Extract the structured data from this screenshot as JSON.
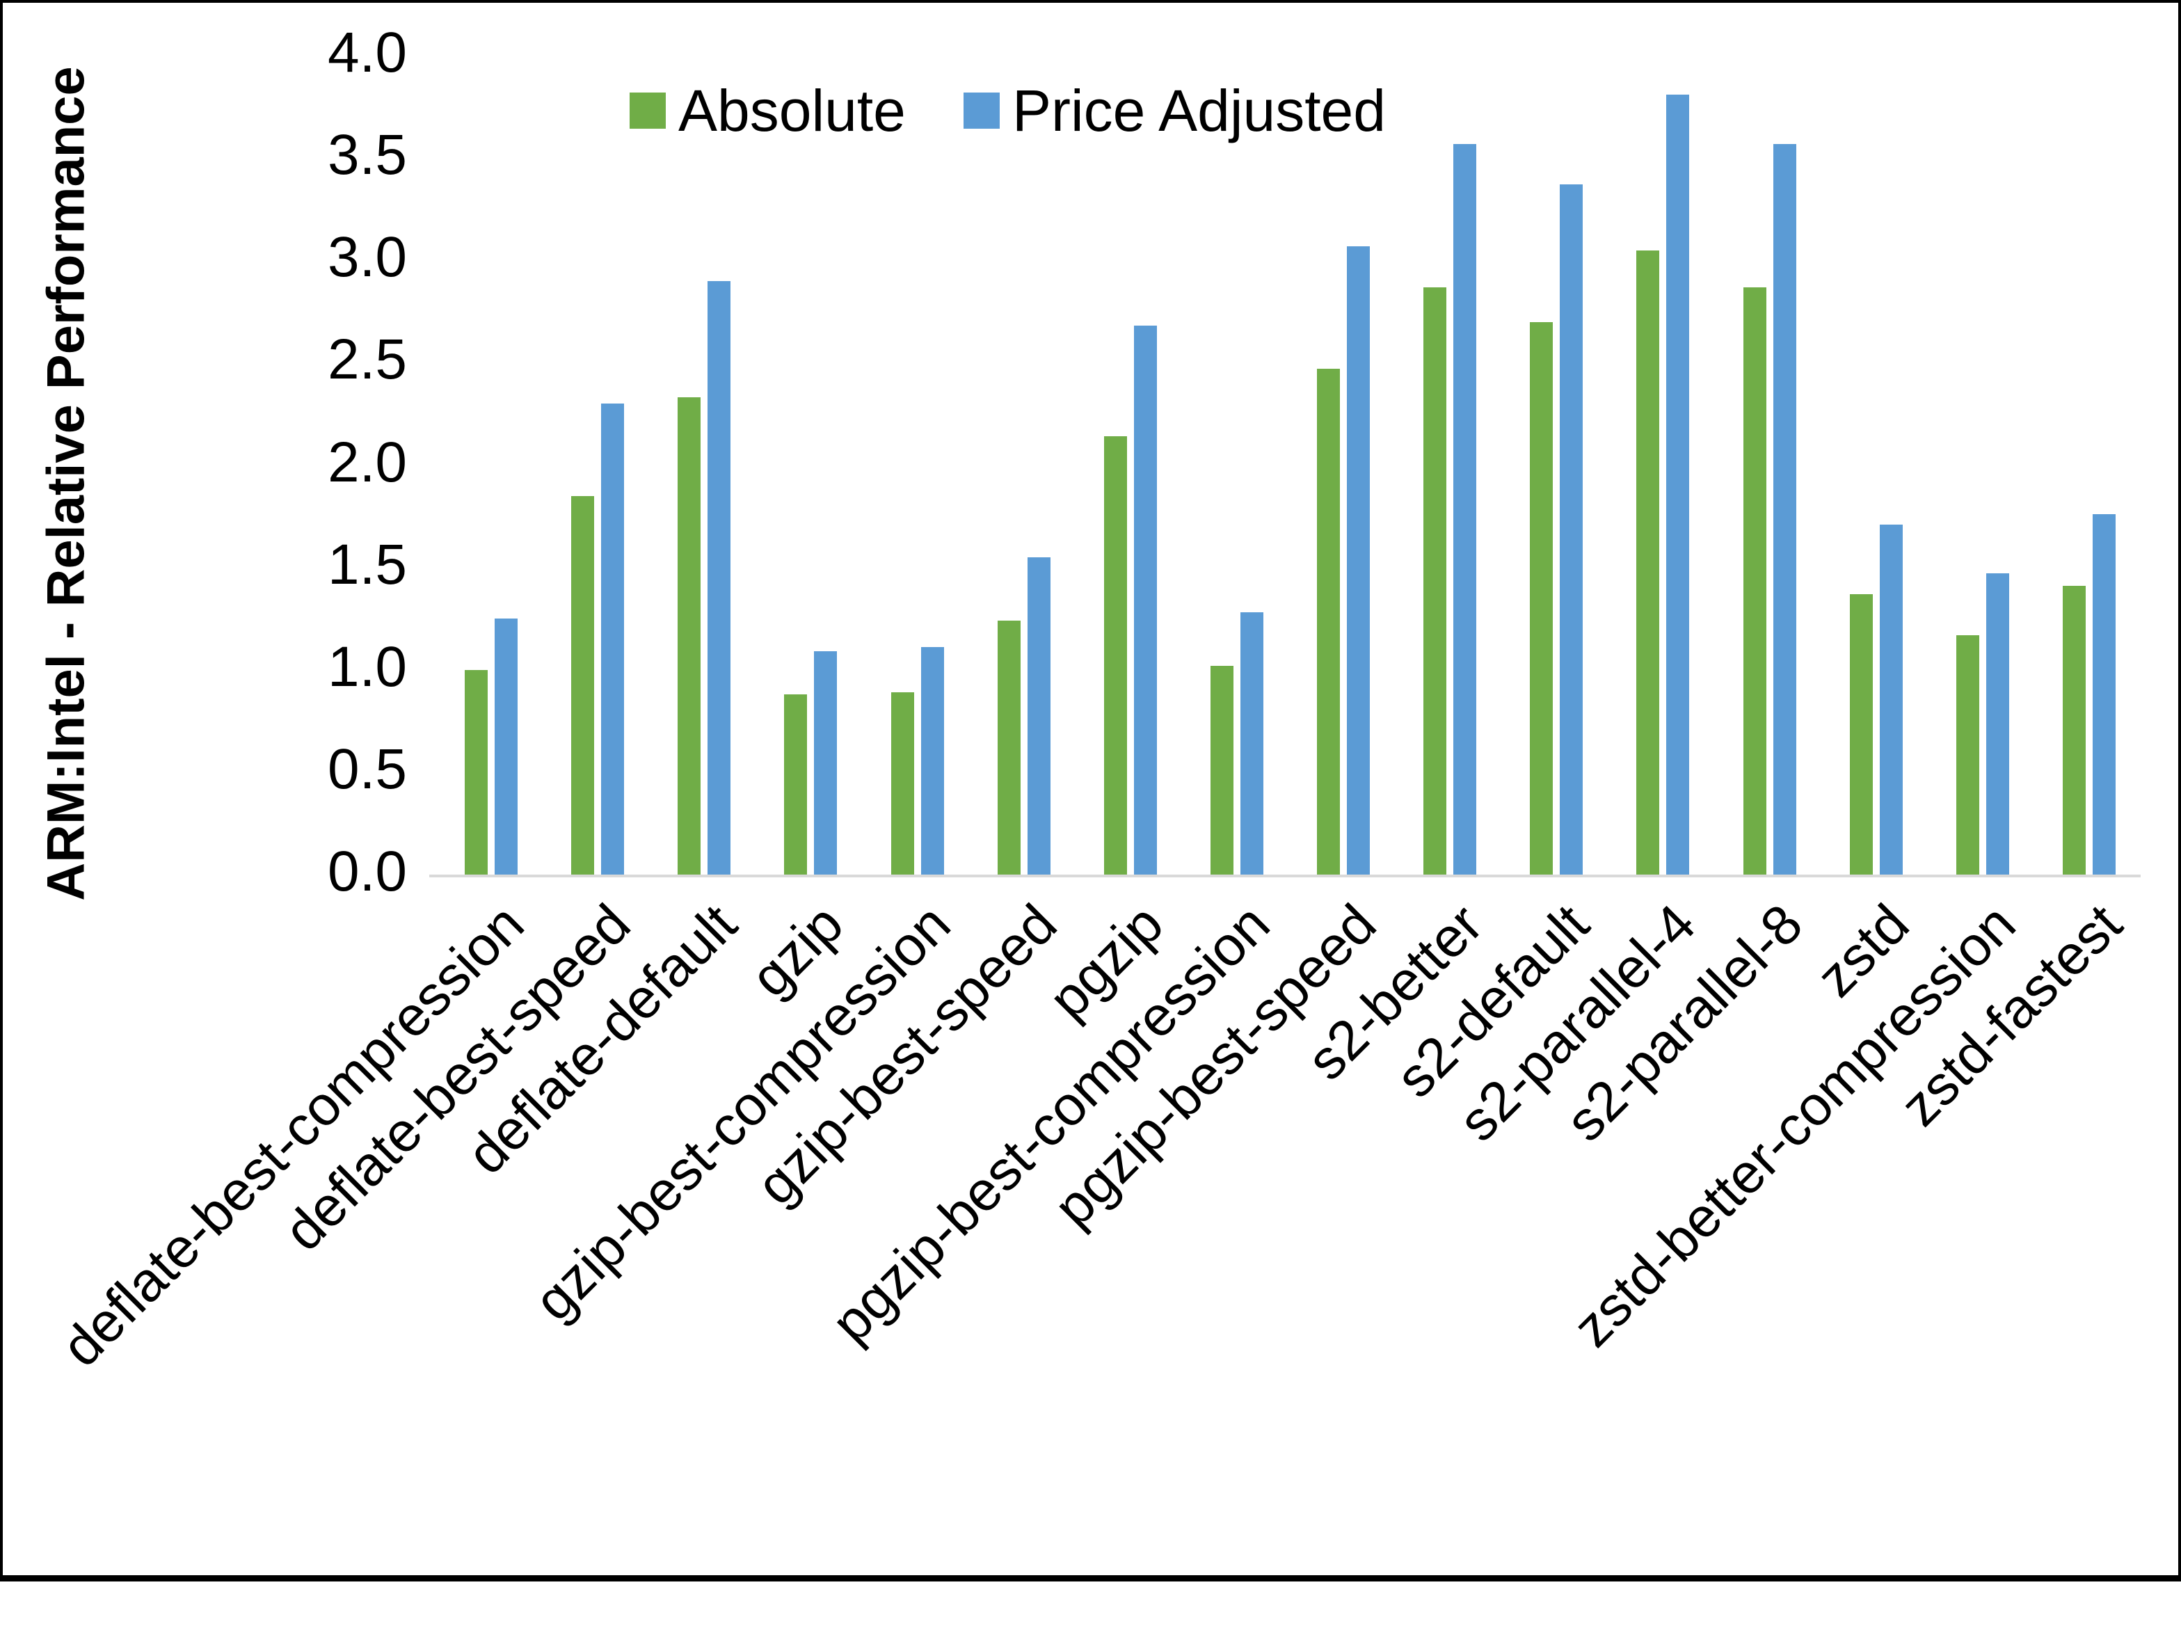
{
  "chart_data": {
    "type": "bar",
    "title": "",
    "xlabel": "",
    "ylabel": "ARM:Intel - Relative Performance",
    "ylim": [
      0.0,
      4.0
    ],
    "ytick_labels": [
      "0.0",
      "0.5",
      "1.0",
      "1.5",
      "2.0",
      "2.5",
      "3.0",
      "3.5",
      "4.0"
    ],
    "grid": false,
    "legend_position": "top-center",
    "categories": [
      "deflate-best-compression",
      "deflate-best-speed",
      "deflate-default",
      "gzip",
      "gzip-best-compression",
      "gzip-best-speed",
      "pgzip",
      "pgzip-best-compression",
      "pgzip-best-speed",
      "s2-better",
      "s2-default",
      "s2-parallel-4",
      "s2-parallel-8",
      "zstd",
      "zstd-better-compression",
      "zstd-fastest"
    ],
    "series": [
      {
        "name": "Absolute",
        "color": "#70AD47",
        "values": [
          1.0,
          1.85,
          2.33,
          0.88,
          0.89,
          1.24,
          2.14,
          1.02,
          2.47,
          2.87,
          2.7,
          3.05,
          2.87,
          1.37,
          1.17,
          1.41
        ]
      },
      {
        "name": "Price Adjusted",
        "color": "#5B9BD5",
        "values": [
          1.25,
          2.3,
          2.9,
          1.09,
          1.11,
          1.55,
          2.68,
          1.28,
          3.07,
          3.57,
          3.37,
          3.81,
          3.57,
          1.71,
          1.47,
          1.76
        ]
      }
    ]
  },
  "colors": {
    "background": "#FFFFFF",
    "border": "#000000",
    "axis_line": "#D9D9D9",
    "text": "#000000"
  }
}
